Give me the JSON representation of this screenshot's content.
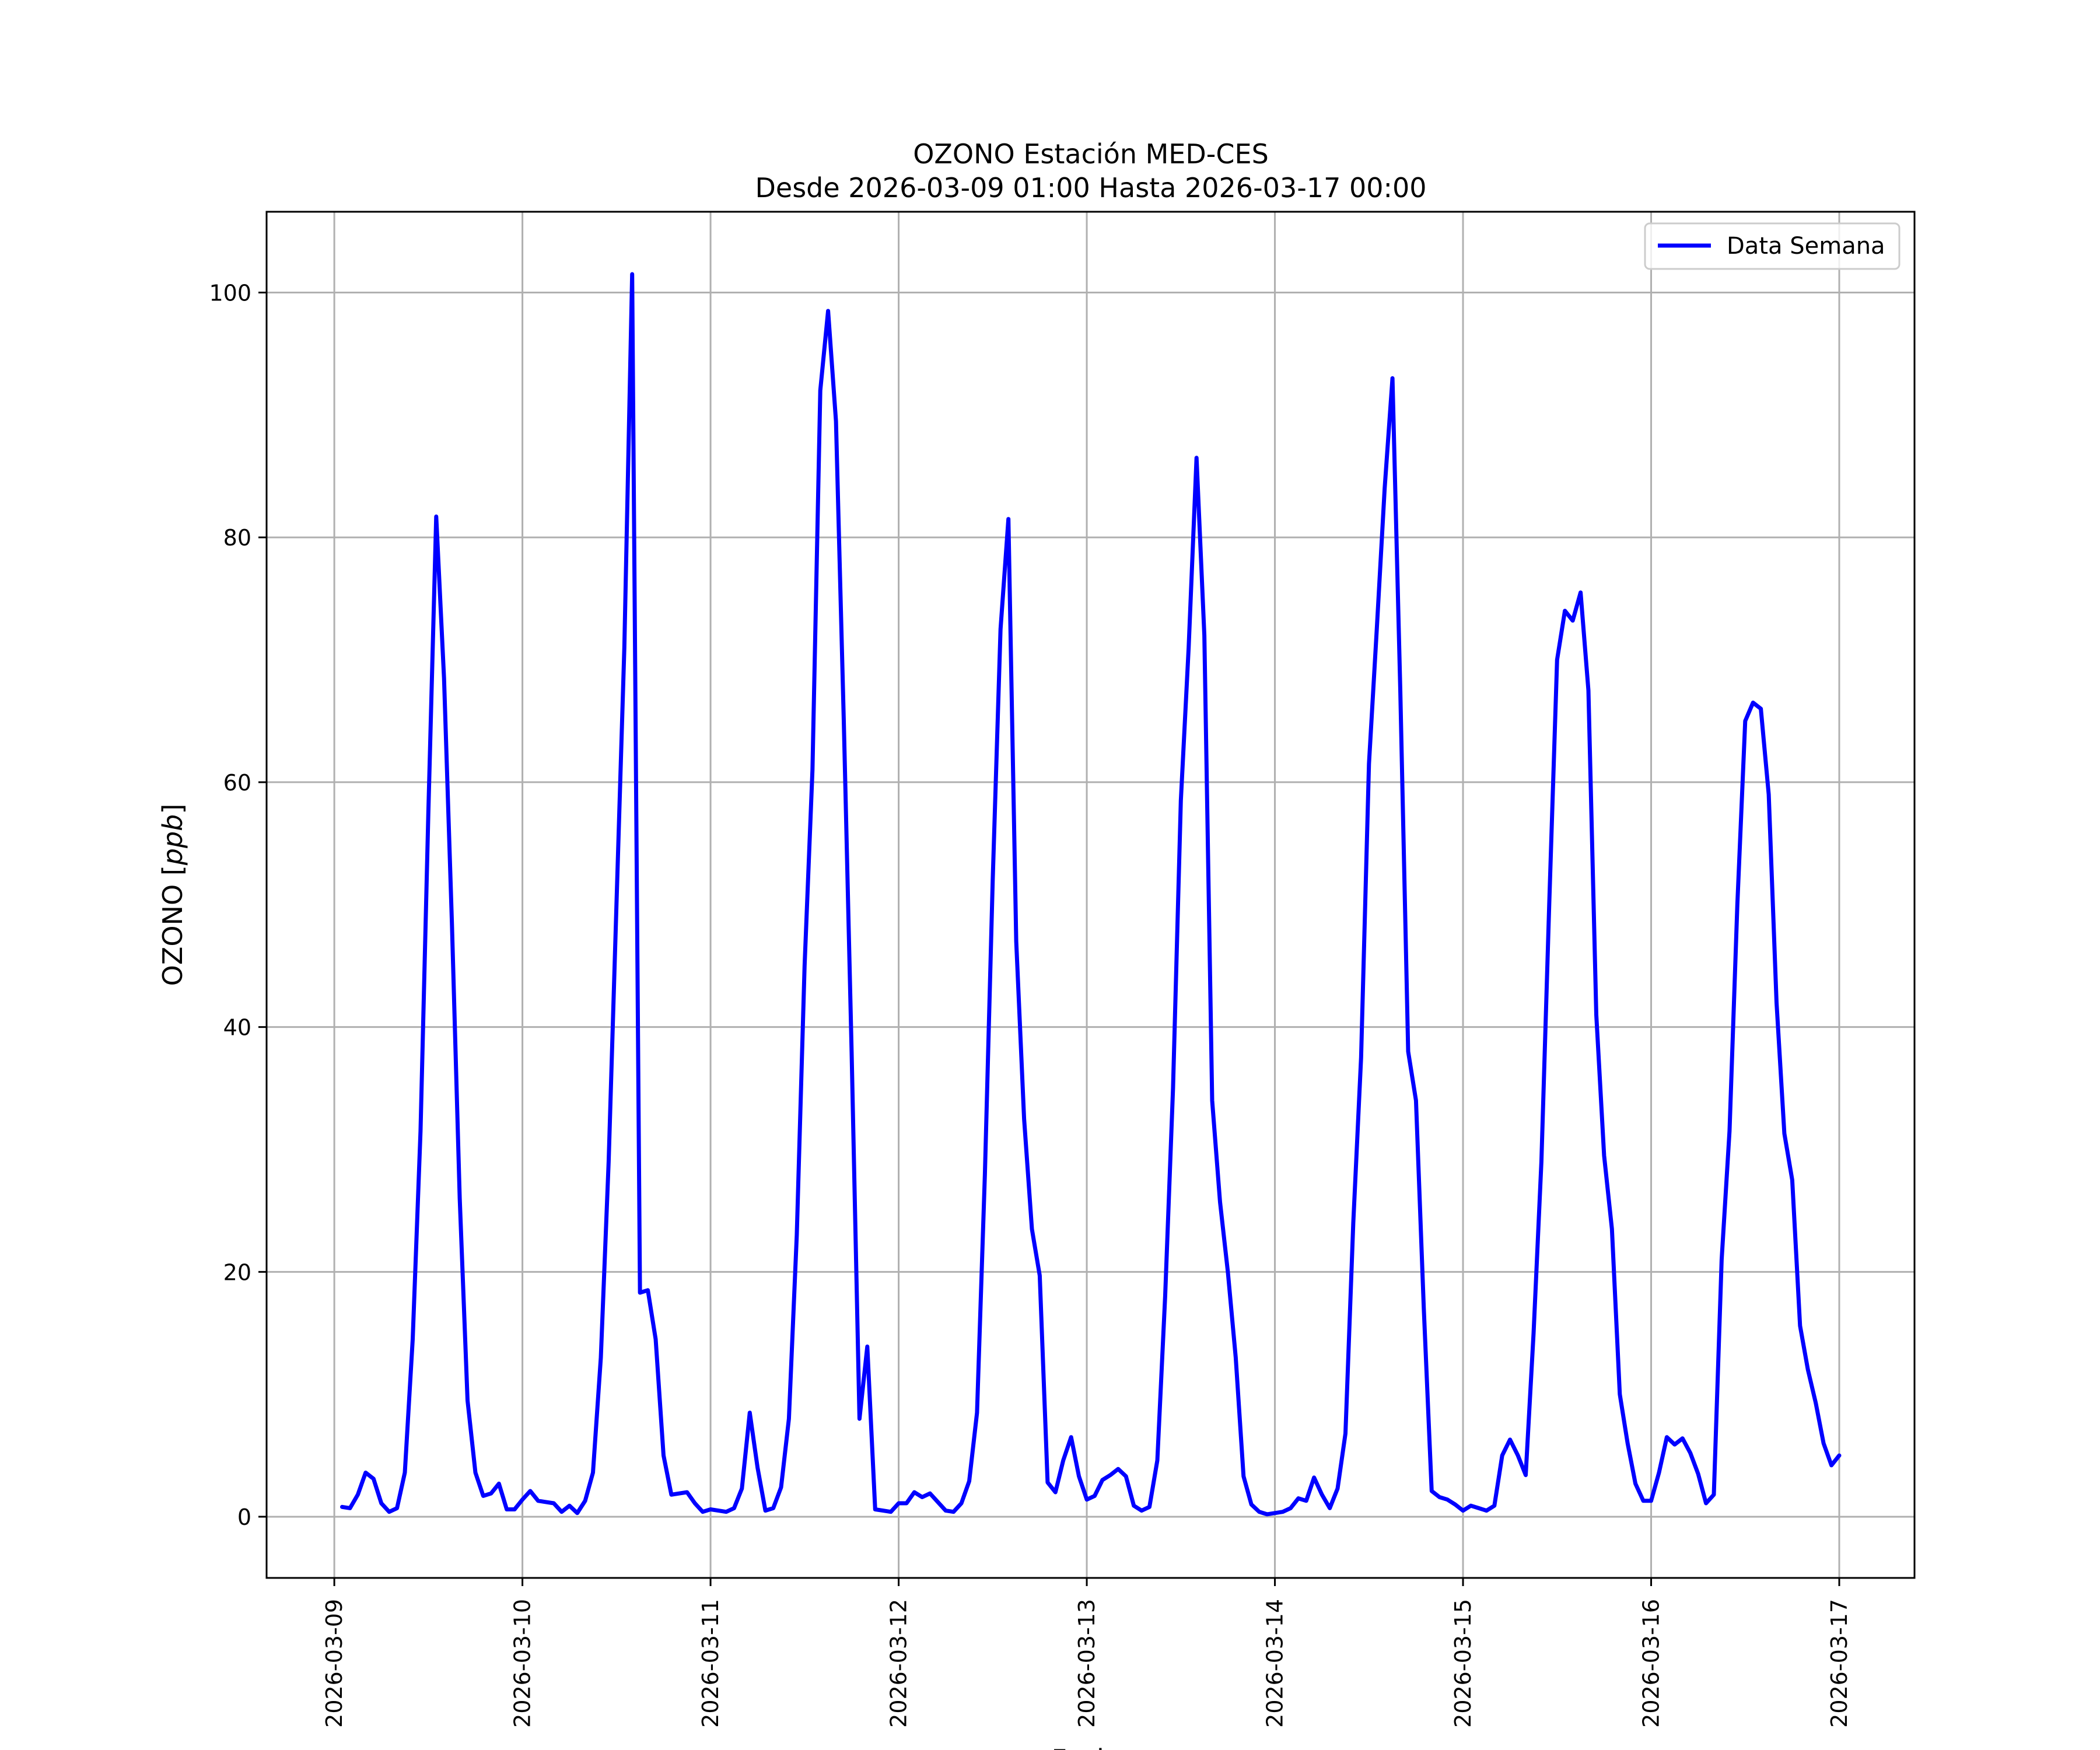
{
  "chart_data": {
    "type": "line",
    "title_line1": "OZONO Estación MED-CES",
    "title_line2": "Desde 2026-03-09 01:00 Hasta 2026-03-17 00:00",
    "xlabel": "Fecha",
    "ylabel_prefix": "OZONO [",
    "ylabel_unit": "ppb",
    "ylabel_suffix": "]",
    "x_start": "2026-03-09 01:00",
    "x_step_hours": 1,
    "x_ticks": [
      "2026-03-09",
      "2026-03-10",
      "2026-03-11",
      "2026-03-12",
      "2026-03-13",
      "2026-03-14",
      "2026-03-15",
      "2026-03-16",
      "2026-03-17"
    ],
    "y_ticks": [
      0,
      20,
      40,
      60,
      80,
      100
    ],
    "ylim": [
      -5,
      106.6
    ],
    "xlim_days": [
      -0.36,
      8.4
    ],
    "grid": true,
    "legend_position": "top-right",
    "colors": {
      "series": "#0000ff",
      "grid": "#b0b0b0",
      "axes": "#000000"
    },
    "series": [
      {
        "name": "Data Semana",
        "values": [
          0.8,
          0.7,
          1.8,
          3.6,
          3.1,
          1.1,
          0.4,
          0.7,
          3.6,
          14.5,
          31.5,
          57.5,
          81.7,
          68.5,
          48.5,
          26.0,
          9.5,
          3.6,
          1.7,
          1.9,
          2.7,
          0.6,
          0.6,
          1.4,
          2.1,
          1.3,
          1.2,
          1.1,
          0.4,
          0.9,
          0.3,
          1.3,
          3.6,
          13.0,
          29.0,
          50.0,
          71.0,
          101.5,
          18.3,
          18.5,
          14.5,
          5.0,
          1.8,
          1.9,
          2.0,
          1.1,
          0.4,
          0.6,
          0.5,
          0.4,
          0.7,
          2.3,
          8.5,
          4.0,
          0.5,
          0.7,
          2.4,
          8.0,
          23.0,
          45.0,
          61.0,
          92.0,
          98.5,
          89.5,
          65.0,
          38.0,
          8.0,
          13.9,
          0.6,
          0.5,
          0.4,
          1.1,
          1.1,
          2.0,
          1.6,
          1.9,
          1.2,
          0.5,
          0.4,
          1.1,
          2.9,
          8.5,
          28.0,
          52.0,
          72.5,
          81.5,
          47.0,
          32.5,
          23.5,
          19.7,
          2.8,
          2.0,
          4.6,
          6.5,
          3.3,
          1.4,
          1.7,
          3.0,
          3.4,
          3.9,
          3.3,
          0.9,
          0.5,
          0.8,
          4.6,
          18.0,
          35.0,
          58.5,
          71.0,
          86.5,
          72.0,
          34.0,
          25.7,
          20.0,
          13.0,
          3.3,
          1.0,
          0.4,
          0.2,
          0.3,
          0.4,
          0.7,
          1.5,
          1.3,
          3.2,
          1.8,
          0.7,
          2.3,
          6.8,
          24.0,
          37.5,
          61.5,
          72.5,
          84.0,
          93.0,
          67.5,
          38.0,
          34.0,
          17.0,
          2.1,
          1.6,
          1.4,
          1.0,
          0.5,
          0.9,
          0.7,
          0.5,
          0.9,
          5.0,
          6.3,
          5.0,
          3.4,
          15.0,
          29.0,
          50.0,
          70.0,
          74.0,
          73.2,
          75.5,
          67.5,
          41.0,
          29.5,
          23.5,
          10.0,
          6.0,
          2.7,
          1.3,
          1.3,
          3.6,
          6.5,
          5.9,
          6.4,
          5.2,
          3.5,
          1.1,
          1.8,
          21.0,
          31.5,
          50.0,
          65.0,
          66.5,
          66.0,
          59.0,
          42.0,
          31.3,
          27.5,
          15.6,
          12.0,
          9.3,
          6.0,
          4.2,
          5.0
        ]
      }
    ]
  }
}
